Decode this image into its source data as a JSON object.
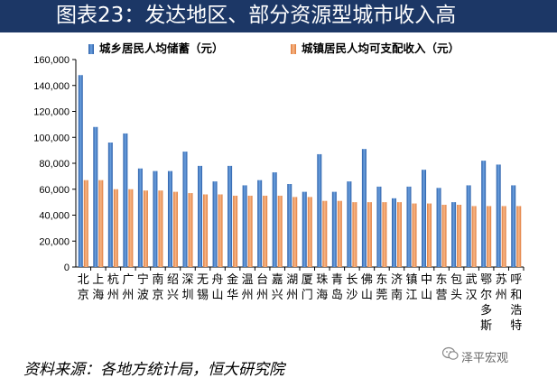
{
  "title": "图表23：发达地区、部分资源型城市收入高",
  "source": "资料来源：各地方统计局，恒大研究院",
  "watermark": "泽平宏观",
  "chart_data": {
    "type": "bar",
    "ylim": [
      0,
      160000
    ],
    "yticks": [
      0,
      20000,
      40000,
      60000,
      80000,
      100000,
      120000,
      140000,
      160000
    ],
    "ytick_labels": [
      "0",
      "20,000",
      "40,000",
      "60,000",
      "80,000",
      "100,000",
      "120,000",
      "140,000",
      "160,000"
    ],
    "grid": false,
    "legend_position": "top",
    "categories": [
      "北京",
      "上海",
      "杭州",
      "广州",
      "宁波",
      "南京",
      "绍兴",
      "深圳",
      "无锡",
      "舟山",
      "金华",
      "温州",
      "台州",
      "嘉兴",
      "湖州",
      "厦门",
      "珠海",
      "青岛",
      "长沙",
      "佛山",
      "东莞",
      "济南",
      "镇江",
      "中山",
      "东营",
      "包头",
      "武汉",
      "鄂尔多斯",
      "苏州",
      "呼和浩特"
    ],
    "series": [
      {
        "name": "城乡居民人均储蓄（元）",
        "color": "#3f7bc7",
        "values": [
          148000,
          108000,
          96000,
          103000,
          76000,
          74000,
          74000,
          89000,
          78000,
          66000,
          78000,
          63000,
          67000,
          73000,
          64000,
          58000,
          87000,
          58000,
          66000,
          91000,
          62000,
          53000,
          62000,
          75000,
          61000,
          50000,
          63000,
          82000,
          79000,
          63000
        ]
      },
      {
        "name": "城镇居民人均可支配收入（元）",
        "color": "#f29a5c",
        "values": [
          67000,
          67000,
          60000,
          60000,
          59000,
          59000,
          58000,
          57000,
          56000,
          56000,
          55000,
          55000,
          55000,
          55000,
          54000,
          54000,
          51000,
          51000,
          50000,
          50000,
          50000,
          50000,
          49000,
          49000,
          48000,
          48000,
          47000,
          47000,
          47000,
          47000
        ]
      }
    ]
  }
}
